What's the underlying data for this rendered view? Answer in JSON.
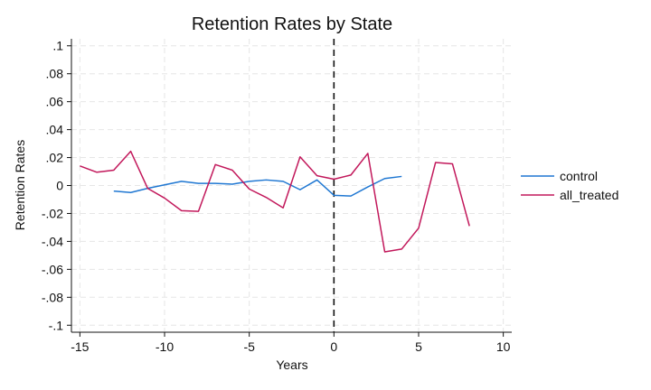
{
  "chart_data": {
    "type": "line",
    "title": "Retention Rates by State",
    "xlabel": "Years",
    "ylabel": "Retention Rates",
    "xlim": [
      -15.5,
      10.5
    ],
    "ylim": [
      -0.105,
      0.105
    ],
    "xticks": [
      -15,
      -10,
      -5,
      0,
      5,
      10
    ],
    "xtick_labels": [
      "-15",
      "-10",
      "-5",
      "0",
      "5",
      "10"
    ],
    "yticks": [
      0.1,
      0.08,
      0.06,
      0.04,
      0.02,
      0,
      -0.02,
      -0.04,
      -0.06,
      -0.08,
      -0.1
    ],
    "ytick_labels": [
      ".1",
      ".08",
      ".06",
      ".04",
      ".02",
      "0",
      "-.02",
      "-.04",
      "-.06",
      "-.08",
      "-.1"
    ],
    "grid": true,
    "vertical_reference_line": 0,
    "legend_position": "right",
    "series": [
      {
        "name": "control",
        "color": "#1f77d2",
        "x": [
          -13,
          -12,
          -11,
          -10,
          -9,
          -8,
          -7,
          -6,
          -5,
          -4,
          -3,
          -2,
          -1,
          0,
          1,
          2,
          3,
          4
        ],
        "y": [
          -0.004,
          -0.005,
          -0.002,
          0.0005,
          0.003,
          0.0015,
          0.0015,
          0.001,
          0.003,
          0.004,
          0.003,
          -0.003,
          0.004,
          -0.007,
          -0.0075,
          -0.001,
          0.005,
          0.0065
        ]
      },
      {
        "name": "all_treated",
        "color": "#c2185b",
        "x": [
          -15,
          -14,
          -13,
          -12,
          -11,
          -10,
          -9,
          -8,
          -7,
          -6,
          -5,
          -4,
          -3,
          -2,
          -1,
          0,
          1,
          2,
          3,
          4,
          5,
          6,
          7,
          8
        ],
        "y": [
          0.014,
          0.0095,
          0.011,
          0.0245,
          -0.002,
          -0.009,
          -0.018,
          -0.0185,
          0.015,
          0.011,
          -0.0025,
          -0.0085,
          -0.016,
          0.0205,
          0.007,
          0.0045,
          0.0075,
          0.023,
          -0.0475,
          -0.0455,
          -0.0305,
          0.0165,
          0.0155,
          -0.029
        ]
      }
    ]
  }
}
